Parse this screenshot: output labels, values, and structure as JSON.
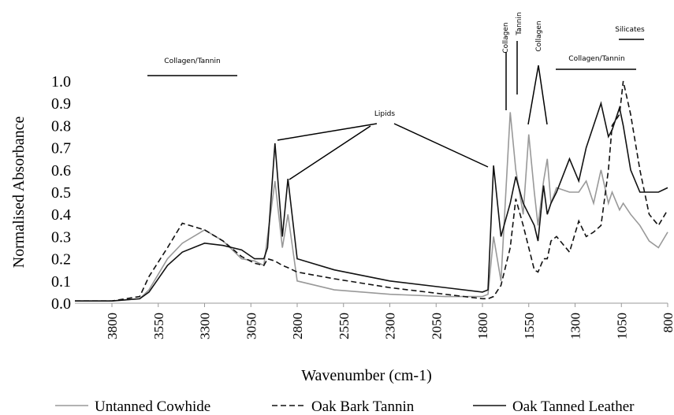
{
  "chart_data": {
    "type": "line",
    "y_label": "Normalised Absorbance",
    "x_label": "Wavenumber (cm-1)",
    "annotations": [
      "Collagen/Tannin",
      "Lipids",
      "Collagen",
      "Tannin",
      "Collagen",
      "Collagen/Tannin",
      "Silicates"
    ],
    "x": [
      4000,
      3800,
      3650,
      3600,
      3500,
      3420,
      3300,
      3200,
      3100,
      3030,
      2980,
      2960,
      2920,
      2880,
      2850,
      2800,
      2600,
      2300,
      2000,
      1800,
      1770,
      1740,
      1700,
      1650,
      1620,
      1580,
      1550,
      1520,
      1500,
      1470,
      1450,
      1430,
      1400,
      1330,
      1280,
      1240,
      1200,
      1160,
      1120,
      1100,
      1060,
      1040,
      1000,
      950,
      900,
      850,
      800
    ],
    "series": [
      {
        "name": "Untanned Cowhide",
        "color": "#999999",
        "line_style": "solid",
        "values": [
          0.01,
          0.01,
          0.02,
          0.06,
          0.2,
          0.27,
          0.33,
          0.28,
          0.2,
          0.19,
          0.17,
          0.3,
          0.55,
          0.25,
          0.4,
          0.1,
          0.06,
          0.04,
          0.03,
          0.03,
          0.04,
          0.3,
          0.1,
          0.86,
          0.6,
          0.4,
          0.76,
          0.5,
          0.35,
          0.55,
          0.65,
          0.45,
          0.52,
          0.5,
          0.5,
          0.55,
          0.45,
          0.6,
          0.45,
          0.5,
          0.42,
          0.45,
          0.4,
          0.35,
          0.28,
          0.25,
          0.32
        ]
      },
      {
        "name": "Oak Bark Tannin",
        "color": "#111111",
        "line_style": "dashed",
        "values": [
          0.01,
          0.01,
          0.03,
          0.12,
          0.25,
          0.36,
          0.33,
          0.28,
          0.21,
          0.18,
          0.17,
          0.2,
          0.19,
          0.17,
          0.16,
          0.14,
          0.11,
          0.07,
          0.04,
          0.02,
          0.02,
          0.03,
          0.08,
          0.25,
          0.47,
          0.35,
          0.25,
          0.15,
          0.14,
          0.2,
          0.2,
          0.28,
          0.3,
          0.23,
          0.37,
          0.3,
          0.32,
          0.35,
          0.6,
          0.8,
          0.85,
          1.0,
          0.85,
          0.6,
          0.4,
          0.35,
          0.42
        ]
      },
      {
        "name": "Oak Tanned Leather",
        "color": "#111111",
        "line_style": "solid",
        "values": [
          0.01,
          0.01,
          0.02,
          0.05,
          0.17,
          0.23,
          0.27,
          0.26,
          0.24,
          0.2,
          0.2,
          0.25,
          0.72,
          0.3,
          0.56,
          0.2,
          0.15,
          0.1,
          0.07,
          0.05,
          0.06,
          0.62,
          0.3,
          0.45,
          0.57,
          0.45,
          0.4,
          0.35,
          0.28,
          0.53,
          0.4,
          0.45,
          0.5,
          0.65,
          0.55,
          0.7,
          0.8,
          0.9,
          0.75,
          0.78,
          0.88,
          0.8,
          0.6,
          0.5,
          0.5,
          0.5,
          0.52
        ]
      }
    ],
    "xlim": [
      4000,
      800
    ],
    "xticks": [
      3800,
      3550,
      3300,
      3050,
      2800,
      2550,
      2300,
      2050,
      1800,
      1550,
      1300,
      1050,
      800
    ],
    "ylim": [
      0,
      1
    ],
    "yticks": [
      {
        "value": 0,
        "label": "0.0"
      },
      0.1,
      0.2,
      0.3,
      0.4,
      0.5,
      0.6,
      0.7,
      0.8,
      0.9,
      {
        "value": 1,
        "label": "1.0"
      }
    ],
    "legend": "bottom"
  }
}
